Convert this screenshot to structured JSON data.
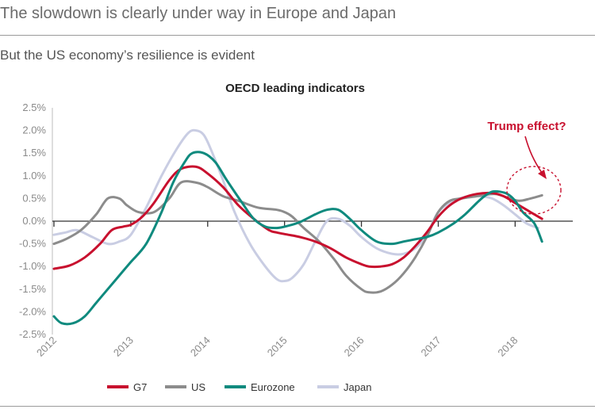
{
  "header": {
    "headline": "The slowdown is clearly under way in Europe and Japan",
    "subhead": "But the US economy’s resilience is evident"
  },
  "colors": {
    "G7": "#c8102e",
    "US": "#8c8c8c",
    "Eurozone": "#0f8a7e",
    "Japan": "#c9cde3",
    "annotation": "#c8102e",
    "axis": "#333333"
  },
  "chart_data": {
    "type": "line",
    "title": "OECD leading indicators",
    "xlabel": "",
    "ylabel": "",
    "xlim": [
      2012,
      2018.75
    ],
    "ylim": [
      -2.5,
      2.5
    ],
    "x_ticks": [
      2012,
      2013,
      2014,
      2015,
      2016,
      2017,
      2018
    ],
    "x_tick_labels": [
      "2012",
      "2013",
      "2014",
      "2015",
      "2016",
      "2017",
      "2018"
    ],
    "y_ticks": [
      2.5,
      2.0,
      1.5,
      1.0,
      0.5,
      0.0,
      -0.5,
      -1.0,
      -1.5,
      -2.0,
      -2.5
    ],
    "y_tick_labels": [
      "2.5%",
      "2.0%",
      "1.5%",
      "1.0%",
      "0.5%",
      "0.0%",
      "-0.5%",
      "-1.0%",
      "-1.5%",
      "-2.0%",
      "-2.5%"
    ],
    "grid": false,
    "legend": "bottom",
    "series": [
      {
        "name": "G7",
        "x": [
          2012,
          2012.2,
          2012.4,
          2012.6,
          2012.75,
          2012.9,
          2013.0,
          2013.15,
          2013.3,
          2013.5,
          2013.65,
          2013.85,
          2014.0,
          2014.2,
          2014.4,
          2014.6,
          2014.8,
          2014.9,
          2015.05,
          2015.2,
          2015.4,
          2015.6,
          2015.8,
          2016.0,
          2016.1,
          2016.25,
          2016.4,
          2016.55,
          2016.7,
          2016.85,
          2017.0,
          2017.15,
          2017.3,
          2017.5,
          2017.7,
          2017.85,
          2018.0,
          2018.2,
          2018.35
        ],
        "values": [
          -1.05,
          -0.98,
          -0.8,
          -0.5,
          -0.2,
          -0.12,
          -0.08,
          0.1,
          0.4,
          0.9,
          1.15,
          1.2,
          1.05,
          0.75,
          0.35,
          0.05,
          -0.2,
          -0.25,
          -0.3,
          -0.35,
          -0.45,
          -0.6,
          -0.8,
          -0.95,
          -1.0,
          -1.0,
          -0.95,
          -0.8,
          -0.55,
          -0.25,
          0.1,
          0.35,
          0.5,
          0.6,
          0.62,
          0.55,
          0.4,
          0.2,
          0.05
        ]
      },
      {
        "name": "US",
        "x": [
          2012,
          2012.15,
          2012.35,
          2012.55,
          2012.7,
          2012.85,
          2012.95,
          2013.1,
          2013.3,
          2013.5,
          2013.65,
          2013.85,
          2014.0,
          2014.2,
          2014.4,
          2014.65,
          2014.9,
          2015.0,
          2015.1,
          2015.25,
          2015.45,
          2015.65,
          2015.8,
          2016.0,
          2016.1,
          2016.25,
          2016.4,
          2016.55,
          2016.7,
          2016.85,
          2017.0,
          2017.15,
          2017.3,
          2017.5,
          2017.6,
          2017.75,
          2017.9,
          2018.05,
          2018.2,
          2018.35
        ],
        "values": [
          -0.5,
          -0.4,
          -0.2,
          0.15,
          0.5,
          0.5,
          0.35,
          0.2,
          0.2,
          0.5,
          0.85,
          0.85,
          0.75,
          0.55,
          0.45,
          0.3,
          0.25,
          0.2,
          0.1,
          -0.15,
          -0.45,
          -0.85,
          -1.2,
          -1.5,
          -1.57,
          -1.55,
          -1.4,
          -1.15,
          -0.8,
          -0.35,
          0.2,
          0.45,
          0.5,
          0.55,
          0.58,
          0.6,
          0.52,
          0.45,
          0.5,
          0.57
        ]
      },
      {
        "name": "Eurozone",
        "x": [
          2012,
          2012.1,
          2012.25,
          2012.4,
          2012.55,
          2012.7,
          2012.9,
          2013.0,
          2013.2,
          2013.4,
          2013.55,
          2013.7,
          2013.8,
          2013.95,
          2014.1,
          2014.25,
          2014.45,
          2014.6,
          2014.75,
          2014.9,
          2015.05,
          2015.2,
          2015.4,
          2015.55,
          2015.7,
          2015.85,
          2016.0,
          2016.2,
          2016.4,
          2016.55,
          2016.7,
          2016.85,
          2017.0,
          2017.2,
          2017.35,
          2017.5,
          2017.6,
          2017.7,
          2017.8,
          2017.9,
          2018.0,
          2018.1,
          2018.25,
          2018.35
        ],
        "values": [
          -2.1,
          -2.25,
          -2.25,
          -2.1,
          -1.8,
          -1.5,
          -1.1,
          -0.9,
          -0.5,
          0.2,
          0.85,
          1.3,
          1.5,
          1.5,
          1.3,
          0.9,
          0.4,
          0.05,
          -0.12,
          -0.15,
          -0.1,
          -0.02,
          0.15,
          0.25,
          0.25,
          0.05,
          -0.2,
          -0.45,
          -0.5,
          -0.45,
          -0.4,
          -0.35,
          -0.25,
          -0.05,
          0.15,
          0.4,
          0.55,
          0.65,
          0.65,
          0.6,
          0.45,
          0.2,
          -0.05,
          -0.45
        ]
      },
      {
        "name": "Japan",
        "x": [
          2012,
          2012.15,
          2012.3,
          2012.5,
          2012.7,
          2012.85,
          2013.0,
          2013.2,
          2013.4,
          2013.6,
          2013.75,
          2013.85,
          2013.95,
          2014.05,
          2014.2,
          2014.35,
          2014.55,
          2014.75,
          2014.9,
          2015.0,
          2015.1,
          2015.25,
          2015.4,
          2015.55,
          2015.7,
          2015.85,
          2016.0,
          2016.2,
          2016.4,
          2016.55,
          2016.7,
          2016.85,
          2017.0,
          2017.2,
          2017.4,
          2017.55,
          2017.7,
          2017.85,
          2018.0,
          2018.15,
          2018.3
        ],
        "values": [
          -0.3,
          -0.25,
          -0.2,
          -0.35,
          -0.5,
          -0.45,
          -0.3,
          0.3,
          1.0,
          1.6,
          1.95,
          2.0,
          1.9,
          1.55,
          0.9,
          0.2,
          -0.5,
          -1.0,
          -1.28,
          -1.32,
          -1.25,
          -0.95,
          -0.45,
          0.0,
          0.05,
          -0.1,
          -0.35,
          -0.6,
          -0.72,
          -0.72,
          -0.6,
          -0.3,
          0.2,
          0.45,
          0.55,
          0.55,
          0.5,
          0.35,
          0.15,
          -0.05,
          -0.15
        ]
      }
    ],
    "legend_items": [
      "G7",
      "US",
      "Eurozone",
      "Japan"
    ],
    "annotations": [
      {
        "text": "Trump effect?",
        "target": "2018 divergence circle"
      }
    ]
  }
}
